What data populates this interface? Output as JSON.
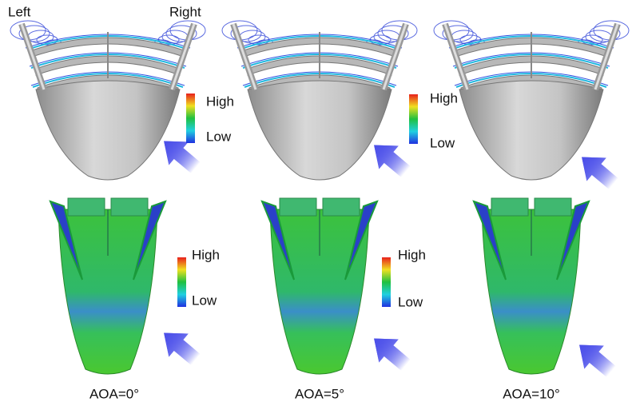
{
  "side_labels": {
    "left": "Left",
    "right": "Right"
  },
  "legends": [
    {
      "high": "High",
      "low": "Low"
    },
    {
      "high": "High",
      "low": "Low"
    },
    {
      "high": "High",
      "low": "Low"
    },
    {
      "high": "High",
      "low": "Low"
    }
  ],
  "captions": [
    "AOA=0°",
    "AOA=5°",
    "AOA=10°"
  ]
}
